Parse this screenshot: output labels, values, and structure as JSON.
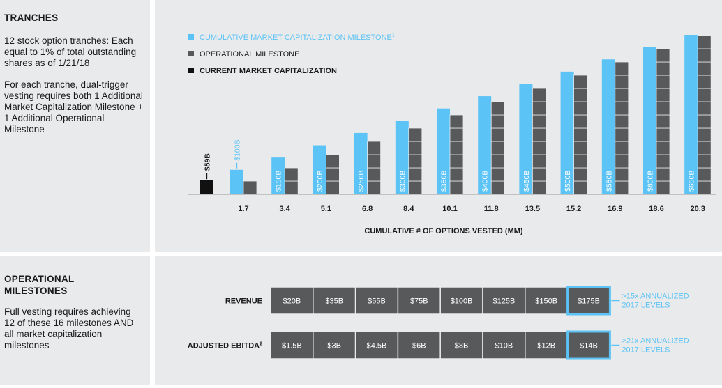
{
  "tranches_panel": {
    "title": "TRANCHES",
    "desc1": "12 stock option tranches: Each equal to 1% of total outstanding shares as of 1/21/18",
    "desc2": "For each tranche, dual-trigger vesting requires both 1 Additional Market Capitalization Milestone + 1 Additional Operational Milestone"
  },
  "ops_panel": {
    "title_line1": "OPERATIONAL",
    "title_line2": "MILESTONES",
    "desc": "Full vesting requires achieving 12 of these 16 milestones AND all market capitalization milestones"
  },
  "chart_data": [
    {
      "type": "bar",
      "xlabel": "CUMULATIVE # OF OPTIONS VESTED (MM)",
      "legend_position": "top-left",
      "legend": [
        {
          "label": "CUMULATIVE MARKET CAPITALIZATION MILESTONE",
          "sup": "1",
          "color": "#5bc3f5"
        },
        {
          "label": "OPERATIONAL MILESTONE",
          "color": "#58595b"
        },
        {
          "label": "CURRENT MARKET CAPITALIZATION",
          "color": "#111111"
        }
      ],
      "current": {
        "value": 59,
        "label": "$59B",
        "color": "#111111"
      },
      "categories": [
        "1.7",
        "3.4",
        "5.1",
        "6.8",
        "8.4",
        "10.1",
        "11.8",
        "13.5",
        "15.2",
        "16.9",
        "18.6",
        "20.3"
      ],
      "series": [
        {
          "key": "market_cap",
          "values": [
            100,
            150,
            200,
            250,
            300,
            350,
            400,
            450,
            500,
            550,
            600,
            650
          ],
          "labels": [
            "$100B",
            "$150B",
            "$200B",
            "$250B",
            "$300B",
            "$350B",
            "$400B",
            "$450B",
            "$500B",
            "$550B",
            "$600B",
            "$650B"
          ],
          "color": "#5bc3f5"
        },
        {
          "key": "operational",
          "values": [
            1,
            2,
            3,
            4,
            5,
            6,
            7,
            8,
            9,
            10,
            11,
            12
          ],
          "color": "#58595b"
        }
      ],
      "ymax": 650
    },
    {
      "type": "table",
      "rows": [
        {
          "label": "REVENUE",
          "cells": [
            "$20B",
            "$35B",
            "$55B",
            "$75B",
            "$100B",
            "$125B",
            "$150B",
            "$175B"
          ],
          "note_line1": ">15x ANNUALIZED",
          "note_line2": "2017 LEVELS"
        },
        {
          "label": "ADJUSTED EBITDA",
          "sup": "2",
          "cells": [
            "$1.5B",
            "$3B",
            "$4.5B",
            "$6B",
            "$8B",
            "$10B",
            "$12B",
            "$14B"
          ],
          "note_line1": ">21x ANNUALIZED",
          "note_line2": "2017 LEVELS"
        }
      ],
      "cell_color": "#58595b",
      "highlight_color": "#5bc3f5"
    }
  ]
}
